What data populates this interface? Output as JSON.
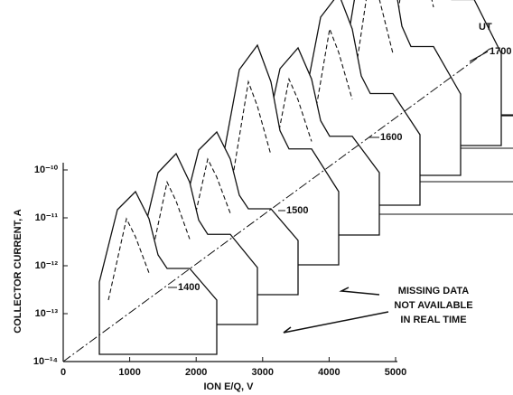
{
  "chart_data": {
    "type": "waterfall",
    "xlabel": "ION E/Q, V",
    "ylabel": "COLLECTOR CURRENT, A",
    "xlim": [
      0,
      5000
    ],
    "xticks": [
      0,
      1000,
      2000,
      3000,
      4000,
      5000
    ],
    "ylim": [
      1e-14,
      1e-10
    ],
    "log_y": true,
    "yticks": [
      {
        "value": 1e-14,
        "label": "10⁻¹⁴"
      },
      {
        "value": 1e-13,
        "label": "10⁻¹³"
      },
      {
        "value": 1e-12,
        "label": "10⁻¹²"
      },
      {
        "value": 1e-11,
        "label": "10⁻¹¹"
      },
      {
        "value": 1e-10,
        "label": "10⁻¹⁰"
      }
    ],
    "time_axis_label": "UT",
    "time_labels": [
      "1400",
      "1500",
      "1600",
      "1700"
    ],
    "annotation": [
      "MISSING DATA",
      "NOT AVAILABLE",
      "IN REAL TIME"
    ]
  }
}
